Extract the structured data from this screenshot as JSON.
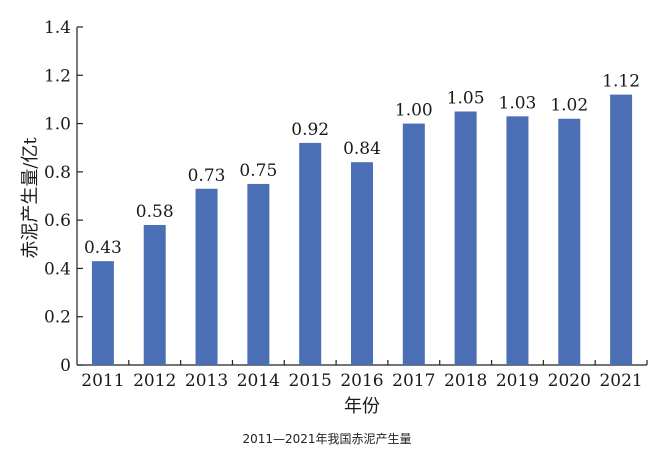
{
  "caption": "2011—2021年我国赤泥产生量",
  "chart_data": {
    "type": "bar",
    "categories": [
      "2011",
      "2012",
      "2013",
      "2014",
      "2015",
      "2016",
      "2017",
      "2018",
      "2019",
      "2020",
      "2021"
    ],
    "values": [
      0.43,
      0.58,
      0.73,
      0.75,
      0.92,
      0.84,
      1.0,
      1.05,
      1.03,
      1.02,
      1.12
    ],
    "data_labels": [
      "0.43",
      "0.58",
      "0.73",
      "0.75",
      "0.92",
      "0.84",
      "1.00",
      "1.05",
      "1.03",
      "1.02",
      "1.12"
    ],
    "xlabel": "年份",
    "ylabel": "赤泥产生量/亿t",
    "ylim": [
      0,
      1.4
    ],
    "yticks": [
      "0",
      "0.2",
      "0.4",
      "0.6",
      "0.8",
      "1.0",
      "1.2",
      "1.4"
    ],
    "bar_color": "#4a6fb5",
    "grid": false
  }
}
